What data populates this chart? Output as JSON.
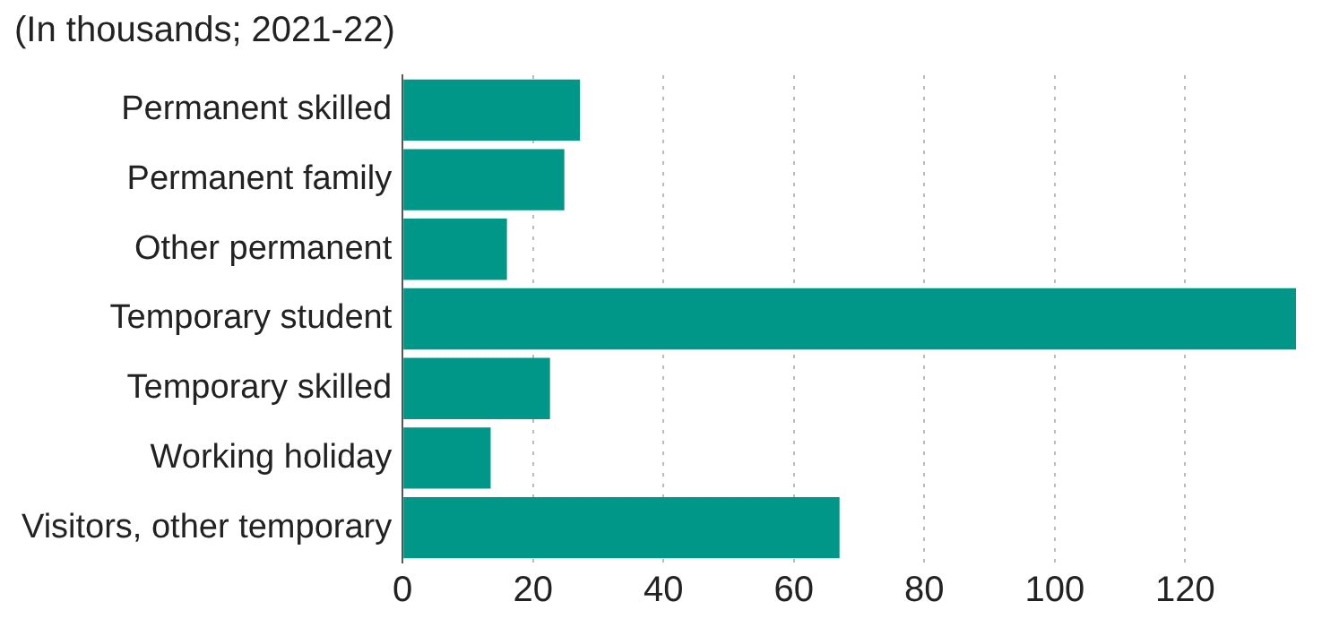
{
  "chart_data": {
    "type": "bar",
    "orientation": "horizontal",
    "title": "(In thousands; 2021-22)",
    "categories": [
      "Permanent skilled",
      "Permanent family",
      "Other permanent",
      "Temporary student",
      "Temporary skilled",
      "Working holiday",
      "Visitors, other temporary"
    ],
    "values": [
      27.2,
      24.8,
      16.0,
      137,
      22.6,
      13.5,
      67
    ],
    "color": "#009688",
    "xlim": [
      0,
      137
    ],
    "xticks": [
      0,
      20,
      40,
      60,
      80,
      100,
      120
    ],
    "grid": "x",
    "legend": false
  }
}
